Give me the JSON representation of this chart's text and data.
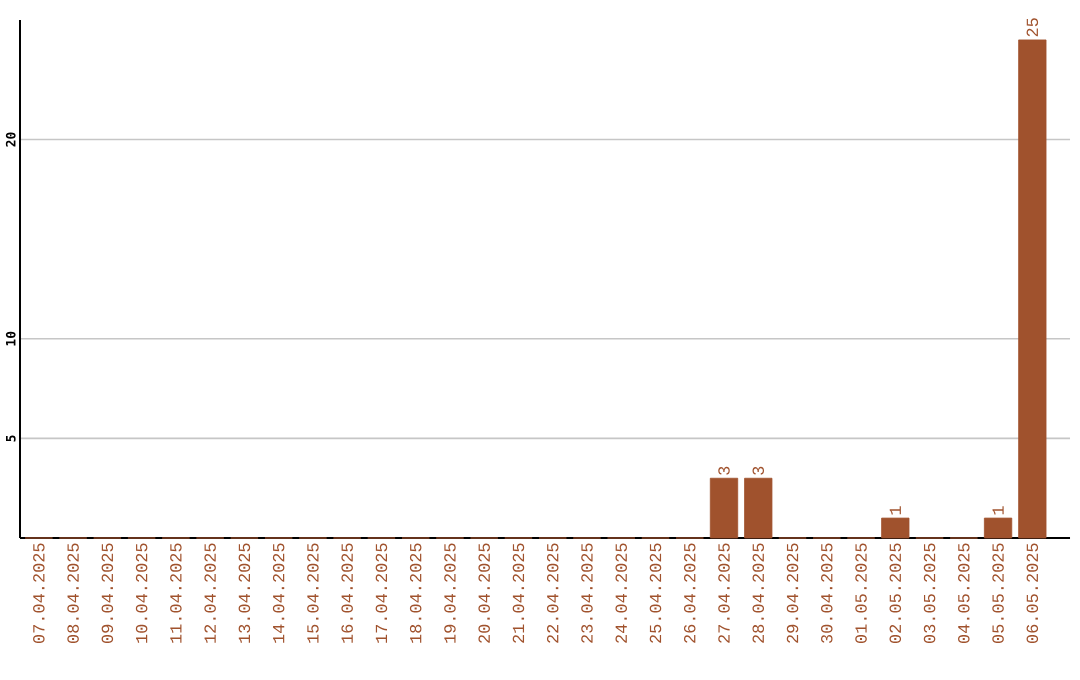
{
  "chart_data": {
    "type": "bar",
    "categories": [
      "07.04.2025",
      "08.04.2025",
      "09.04.2025",
      "10.04.2025",
      "11.04.2025",
      "12.04.2025",
      "13.04.2025",
      "14.04.2025",
      "15.04.2025",
      "16.04.2025",
      "17.04.2025",
      "18.04.2025",
      "19.04.2025",
      "20.04.2025",
      "21.04.2025",
      "22.04.2025",
      "23.04.2025",
      "24.04.2025",
      "25.04.2025",
      "26.04.2025",
      "27.04.2025",
      "28.04.2025",
      "29.04.2025",
      "30.04.2025",
      "01.05.2025",
      "02.05.2025",
      "03.05.2025",
      "04.05.2025",
      "05.05.2025",
      "06.05.2025"
    ],
    "values": [
      0,
      0,
      0,
      0,
      0,
      0,
      0,
      0,
      0,
      0,
      0,
      0,
      0,
      0,
      0,
      0,
      0,
      0,
      0,
      0,
      3,
      3,
      0,
      0,
      0,
      1,
      0,
      0,
      1,
      25
    ],
    "value_labels": [
      null,
      null,
      null,
      null,
      null,
      null,
      null,
      null,
      null,
      null,
      null,
      null,
      null,
      null,
      null,
      null,
      null,
      null,
      null,
      null,
      "3",
      "3",
      null,
      null,
      null,
      "1",
      null,
      null,
      "1",
      "25"
    ],
    "color": "#a0522d",
    "ylim": [
      0,
      26
    ],
    "yticks": [
      5,
      10,
      20
    ],
    "grid": "y"
  }
}
